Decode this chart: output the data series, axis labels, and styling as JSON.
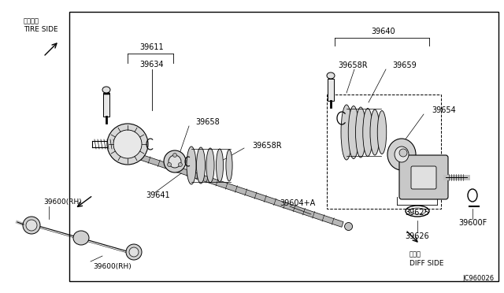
{
  "bg_color": "#ffffff",
  "border_color": "#000000",
  "title_ref": "JC960026",
  "tire_side_jp": "タイヤ側",
  "tire_side_en": "TIRE SIDE",
  "diff_side_jp": "デフ側",
  "diff_side_en": "DIFF SIDE",
  "fig_width": 6.4,
  "fig_height": 3.72,
  "dpi": 100
}
